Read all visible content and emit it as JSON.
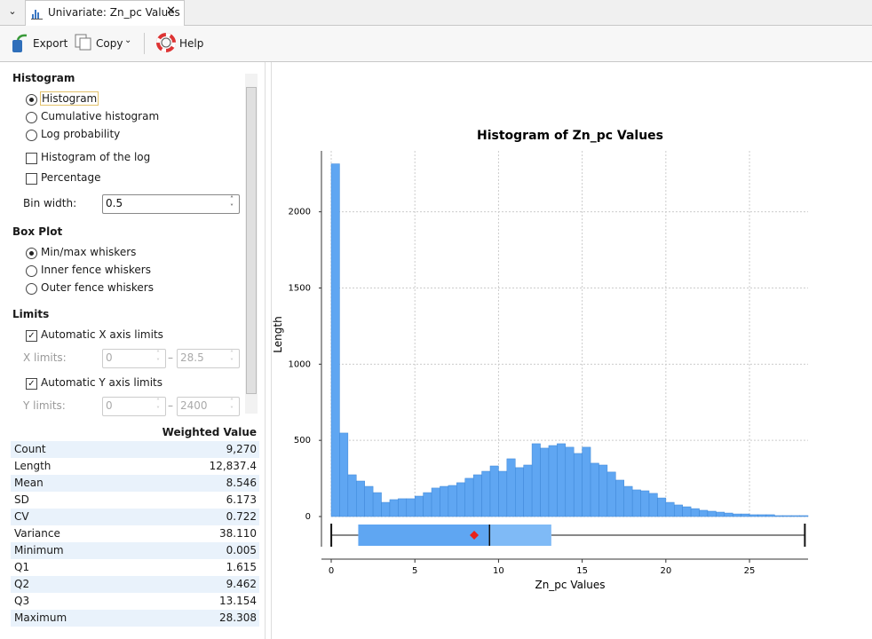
{
  "tab": {
    "title": "Univariate: Zn_pc Values"
  },
  "toolbar": {
    "buttons": [
      "Export",
      "Copy",
      "Help"
    ]
  },
  "panel": {
    "histogram_heading": "Histogram",
    "histogram_options": [
      "Histogram",
      "Cumulative histogram",
      "Log probability"
    ],
    "histogram_checks": [
      "Histogram of the log",
      "Percentage"
    ],
    "bin_width_label": "Bin width:",
    "bin_width": 0.5,
    "boxplot_heading": "Box Plot",
    "boxplot_options": [
      "Min/max whiskers",
      "Inner fence whiskers",
      "Outer fence whiskers"
    ],
    "limits_heading": "Limits",
    "x_auto": "Automatic X axis limits",
    "x_limits_label": "X limits:",
    "x_limits": [
      0,
      28.5
    ],
    "y_auto": "Automatic Y axis limits",
    "y_limits_label": "Y limits:",
    "y_limits": [
      0,
      2400
    ],
    "limits_separator": "–"
  },
  "stats": {
    "header": "Weighted Value",
    "rows": [
      [
        "Count",
        "9,270"
      ],
      [
        "Length",
        "12,837.4"
      ],
      [
        "Mean",
        "8.546"
      ],
      [
        "SD",
        "6.173"
      ],
      [
        "CV",
        "0.722"
      ],
      [
        "Variance",
        "38.110"
      ],
      [
        "Minimum",
        "0.005"
      ],
      [
        "Q1",
        "1.615"
      ],
      [
        "Q2",
        "9.462"
      ],
      [
        "Q3",
        "13.154"
      ],
      [
        "Maximum",
        "28.308"
      ]
    ]
  },
  "chart_data": {
    "type": "histogram",
    "title": "Histogram of Zn_pc Values",
    "xlabel": "Zn_pc Values",
    "ylabel": "Length",
    "color": "#5fa6f2",
    "bins": [
      0,
      0.5,
      1,
      1.5,
      2,
      2.5,
      3,
      3.5,
      4,
      4.5,
      5,
      5.5,
      6,
      6.5,
      7,
      7.5,
      8,
      8.5,
      9,
      9.5,
      10,
      10.5,
      11,
      11.5,
      12,
      12.5,
      13,
      13.5,
      14,
      14.5,
      15,
      15.5,
      16,
      16.5,
      17,
      17.5,
      18,
      18.5,
      19,
      19.5,
      20,
      20.5,
      21,
      21.5,
      22,
      22.5,
      23,
      23.5,
      24,
      24.5,
      25,
      25.5,
      26,
      26.5,
      27,
      27.5,
      28,
      28.5
    ],
    "values": [
      2315,
      548,
      274,
      233,
      198,
      157,
      93,
      111,
      117,
      117,
      134,
      157,
      187,
      198,
      204,
      222,
      251,
      274,
      297,
      332,
      297,
      379,
      321,
      338,
      478,
      449,
      466,
      478,
      455,
      414,
      455,
      350,
      338,
      292,
      239,
      198,
      175,
      169,
      152,
      122,
      93,
      76,
      64,
      52,
      41,
      35,
      29,
      23,
      17,
      17,
      12,
      12,
      12,
      6,
      6,
      6,
      6
    ],
    "xlim": [
      0,
      28.5
    ],
    "ylim": [
      0,
      2400
    ],
    "xticks": [
      0,
      5,
      10,
      15,
      20,
      25
    ],
    "yticks": [
      0,
      500,
      1000,
      1500,
      2000
    ],
    "grid": true,
    "box": {
      "min": 0.005,
      "q1": 1.615,
      "median": 9.462,
      "q3": 13.154,
      "max": 28.308,
      "mean": 8.546,
      "lower_color": "#5fa6f2",
      "upper_color": "#7fbaf6",
      "mean_color": "#e8221b"
    }
  }
}
